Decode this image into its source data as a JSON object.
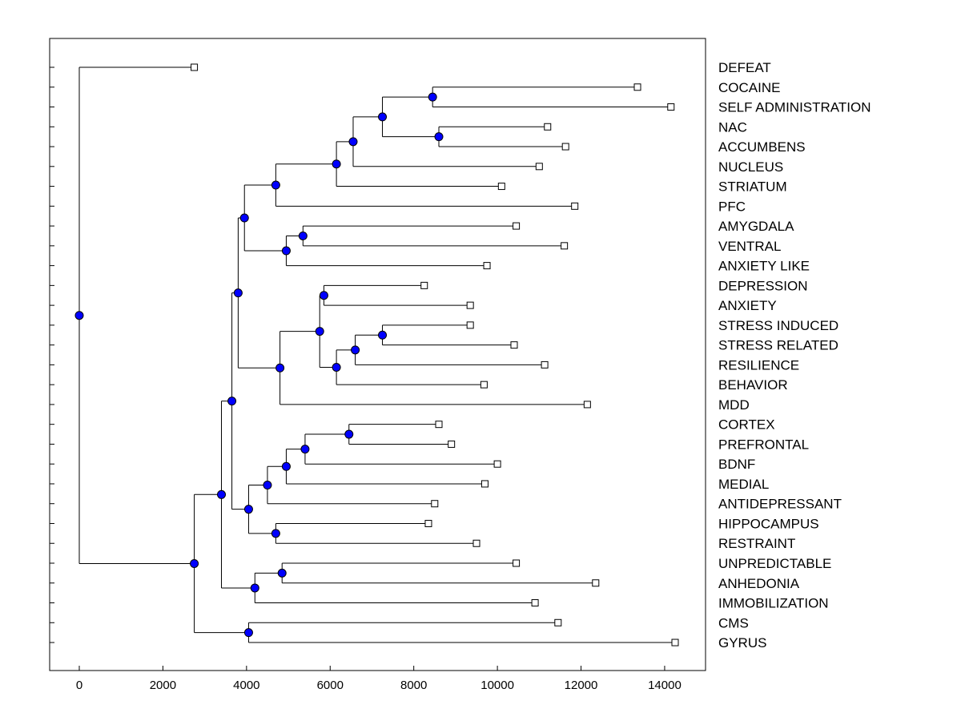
{
  "chart_data": {
    "type": "dendrogram",
    "orientation": "horizontal",
    "title": "",
    "xlabel": "",
    "ylabel": "",
    "xlim": [
      -700,
      15000
    ],
    "x_ticks": [
      0,
      2000,
      4000,
      6000,
      8000,
      10000,
      12000,
      14000
    ],
    "x_tick_labels": [
      "0",
      "2000",
      "4000",
      "6000",
      "8000",
      "10000",
      "12000",
      "14000"
    ],
    "leaves": [
      {
        "label": "DEFEAT",
        "x": 2750
      },
      {
        "label": "COCAINE",
        "x": 13350
      },
      {
        "label": "SELF ADMINISTRATION",
        "x": 14150
      },
      {
        "label": "NAC",
        "x": 11200
      },
      {
        "label": "ACCUMBENS",
        "x": 11630
      },
      {
        "label": "NUCLEUS",
        "x": 11000
      },
      {
        "label": "STRIATUM",
        "x": 10100
      },
      {
        "label": "PFC",
        "x": 11850
      },
      {
        "label": "AMYGDALA",
        "x": 10450
      },
      {
        "label": "VENTRAL",
        "x": 11600
      },
      {
        "label": "ANXIETY LIKE",
        "x": 9750
      },
      {
        "label": "DEPRESSION",
        "x": 8250
      },
      {
        "label": "ANXIETY",
        "x": 9350
      },
      {
        "label": "STRESS INDUCED",
        "x": 9350
      },
      {
        "label": "STRESS RELATED",
        "x": 10400
      },
      {
        "label": "RESILIENCE",
        "x": 11130
      },
      {
        "label": "BEHAVIOR",
        "x": 9680
      },
      {
        "label": "MDD",
        "x": 12150
      },
      {
        "label": "CORTEX",
        "x": 8600
      },
      {
        "label": "PREFRONTAL",
        "x": 8900
      },
      {
        "label": "BDNF",
        "x": 10000
      },
      {
        "label": "MEDIAL",
        "x": 9700
      },
      {
        "label": "ANTIDEPRESSANT",
        "x": 8500
      },
      {
        "label": "HIPPOCAMPUS",
        "x": 8350
      },
      {
        "label": "RESTRAINT",
        "x": 9500
      },
      {
        "label": "UNPREDICTABLE",
        "x": 10450
      },
      {
        "label": "ANHEDONIA",
        "x": 12350
      },
      {
        "label": "IMMOBILIZATION",
        "x": 10900
      },
      {
        "label": "CMS",
        "x": 11450
      },
      {
        "label": "GYRUS",
        "x": 14250
      }
    ],
    "merges": [
      {
        "id": "n1",
        "x": 8450,
        "children": [
          "L1",
          "L2"
        ]
      },
      {
        "id": "n2",
        "x": 8600,
        "children": [
          "L3",
          "L4"
        ]
      },
      {
        "id": "n3",
        "x": 7250,
        "children": [
          "n1",
          "n2"
        ]
      },
      {
        "id": "n4",
        "x": 6550,
        "children": [
          "n3",
          "L5"
        ]
      },
      {
        "id": "n5",
        "x": 6150,
        "children": [
          "n4",
          "L6"
        ]
      },
      {
        "id": "n6",
        "x": 4700,
        "children": [
          "n5",
          "L7"
        ]
      },
      {
        "id": "n7",
        "x": 5350,
        "children": [
          "L8",
          "L9"
        ]
      },
      {
        "id": "n8",
        "x": 4950,
        "children": [
          "n7",
          "L10"
        ]
      },
      {
        "id": "n9",
        "x": 3950,
        "children": [
          "n6",
          "n8"
        ]
      },
      {
        "id": "n10",
        "x": 5850,
        "children": [
          "L11",
          "L12"
        ]
      },
      {
        "id": "n11",
        "x": 7250,
        "children": [
          "L13",
          "L14"
        ]
      },
      {
        "id": "n12",
        "x": 6600,
        "children": [
          "n11",
          "L15"
        ]
      },
      {
        "id": "n13",
        "x": 6150,
        "children": [
          "n12",
          "L16"
        ]
      },
      {
        "id": "n14",
        "x": 5750,
        "children": [
          "n10",
          "n13"
        ]
      },
      {
        "id": "n15",
        "x": 4800,
        "children": [
          "n14",
          "L17"
        ]
      },
      {
        "id": "n16",
        "x": 3800,
        "children": [
          "n9",
          "n15"
        ]
      },
      {
        "id": "n17",
        "x": 6450,
        "children": [
          "L18",
          "L19"
        ]
      },
      {
        "id": "n18",
        "x": 5400,
        "children": [
          "n17",
          "L20"
        ]
      },
      {
        "id": "n19",
        "x": 4950,
        "children": [
          "n18",
          "L21"
        ]
      },
      {
        "id": "n20",
        "x": 4500,
        "children": [
          "n19",
          "L22"
        ]
      },
      {
        "id": "n21",
        "x": 4700,
        "children": [
          "L23",
          "L24"
        ]
      },
      {
        "id": "n22",
        "x": 4050,
        "children": [
          "n20",
          "n21"
        ]
      },
      {
        "id": "n23",
        "x": 3650,
        "children": [
          "n16",
          "n22"
        ]
      },
      {
        "id": "n24",
        "x": 4850,
        "children": [
          "L25",
          "L26"
        ]
      },
      {
        "id": "n25",
        "x": 4200,
        "children": [
          "n24",
          "L27"
        ]
      },
      {
        "id": "n26",
        "x": 3400,
        "children": [
          "n23",
          "n25"
        ]
      },
      {
        "id": "n27",
        "x": 4050,
        "children": [
          "L28",
          "L29"
        ]
      },
      {
        "id": "n28",
        "x": 2750,
        "children": [
          "n26",
          "n27"
        ]
      },
      {
        "id": "n29",
        "x": 0,
        "children": [
          "L0",
          "n28"
        ]
      }
    ]
  }
}
